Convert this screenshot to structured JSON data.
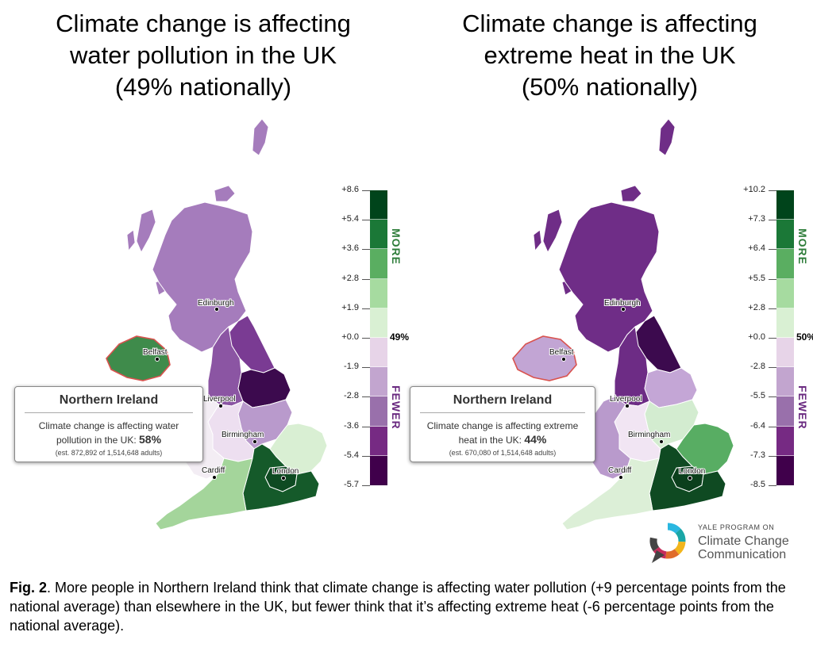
{
  "panels": [
    {
      "title_lines": [
        "Climate change is affecting",
        "water pollution in the UK",
        "(49% nationally)"
      ],
      "legend": {
        "ticks": [
          "+8.6",
          "+5.4",
          "+3.6",
          "+2.8",
          "+1.9",
          "+0.0",
          "-1.9",
          "-2.8",
          "-3.6",
          "-5.4",
          "-5.7"
        ],
        "more_label": "MORE",
        "fewer_label": "FEWER",
        "national_value": "49%"
      },
      "regions": {
        "scotland": "#a57cbc",
        "northern_ireland": "#3f8b4b",
        "north_east": "#7a3b93",
        "north_west": "#8b55a3",
        "yorkshire": "#3c0a4e",
        "east_midlands": "#b99acc",
        "west_midlands": "#eddff0",
        "wales": "#f3edf4",
        "east_england": "#d9efd3",
        "london": "#0e4a22",
        "south_east": "#155a2a",
        "south_west": "#a4d59b"
      },
      "cities": [
        "Edinburgh",
        "Belfast",
        "Liverpool",
        "Birmingham",
        "Cardiff",
        "London"
      ],
      "tooltip": {
        "title": "Northern Ireland",
        "text": "Climate change is affecting water pollution in the UK:",
        "value": "58%",
        "estimate": "(est. 872,892 of 1,514,648 adults)"
      }
    },
    {
      "title_lines": [
        "Climate change is affecting",
        "extreme heat in the UK",
        "(50% nationally)"
      ],
      "legend": {
        "ticks": [
          "+10.2",
          "+7.3",
          "+6.4",
          "+5.5",
          "+2.8",
          "+0.0",
          "-2.8",
          "-5.5",
          "-6.4",
          "-7.3",
          "-8.5"
        ],
        "more_label": "MORE",
        "fewer_label": "FEWER",
        "national_value": "50%"
      },
      "regions": {
        "scotland": "#6f2d87",
        "northern_ireland": "#c2a5d4",
        "north_east": "#3c0a4e",
        "north_west": "#6d2c85",
        "yorkshire": "#c4a6d6",
        "east_midlands": "#d3ecd0",
        "west_midlands": "#f1e5f3",
        "wales": "#b99acc",
        "east_england": "#58ad63",
        "london": "#0b3f1c",
        "south_east": "#0f4a22",
        "south_west": "#dcefd7"
      },
      "cities": [
        "Edinburgh",
        "Belfast",
        "Liverpool",
        "Birmingham",
        "Cardiff",
        "London"
      ],
      "tooltip": {
        "title": "Northern Ireland",
        "text": "Climate change is affecting extreme heat in the UK:",
        "value": "44%",
        "estimate": "(est. 670,080 of 1,514,648 adults)"
      }
    }
  ],
  "legend_colors": [
    "#00441b",
    "#1b7837",
    "#5aae61",
    "#a6dba0",
    "#d9f0d3",
    "#e7d4e8",
    "#c2a5cf",
    "#9970ab",
    "#762a83",
    "#40004b"
  ],
  "logo": {
    "small_line": "YALE PROGRAM ON",
    "line1": "Climate Change",
    "line2": "Communication",
    "ring_colors": [
      "#2ab7e0",
      "#1aa6a6",
      "#f2b51c",
      "#e06c2a",
      "#c62d5b",
      "#444444"
    ]
  },
  "caption": {
    "label": "Fig. 2",
    "text": ". More people in Northern Ireland think that climate change is affecting water pollution (+9 percentage points from the national average) than elsewhere in the UK, but fewer think that it’s affecting extreme heat (-6 percentage points from the national average)."
  }
}
